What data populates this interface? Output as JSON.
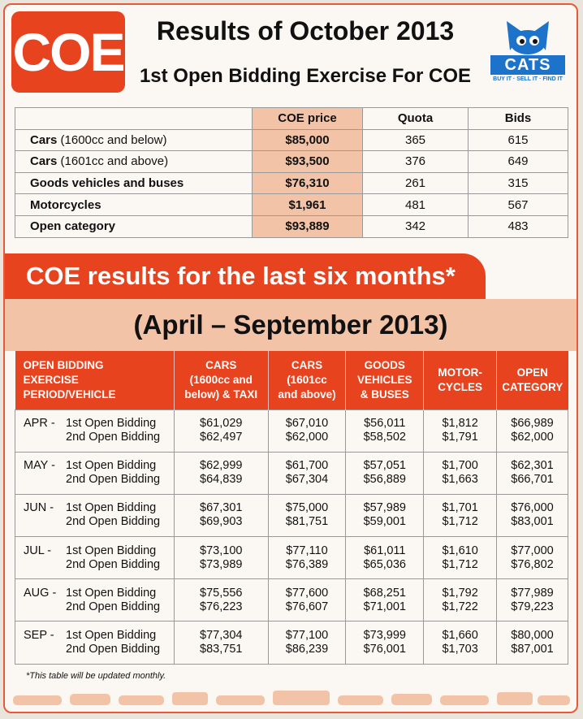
{
  "header": {
    "badge": "COE",
    "title": "Results of October 2013",
    "subtitle": "1st Open Bidding Exercise For COE",
    "logo_text": "CATS",
    "logo_tagline": "BUY IT · SELL IT · FIND IT"
  },
  "current": {
    "columns": [
      "COE price",
      "Quota",
      "Bids"
    ],
    "rows": [
      {
        "bold": "Cars",
        "rest": " (1600cc and below)",
        "price": "$85,000",
        "quota": "365",
        "bids": "615"
      },
      {
        "bold": "Cars",
        "rest": " (1601cc and above)",
        "price": "$93,500",
        "quota": "376",
        "bids": "649"
      },
      {
        "bold": "Goods vehicles and buses",
        "rest": "",
        "price": "$76,310",
        "quota": "261",
        "bids": "315"
      },
      {
        "bold": "Motorcycles",
        "rest": "",
        "price": "$1,961",
        "quota": "481",
        "bids": "567"
      },
      {
        "bold": "Open category",
        "rest": "",
        "price": "$93,889",
        "quota": "342",
        "bids": "483"
      }
    ]
  },
  "banner": "COE results for the last six months*",
  "subbanner": "(April – September 2013)",
  "history": {
    "headers": [
      [
        "OPEN BIDDING",
        "EXERCISE",
        "PERIOD/VEHICLE"
      ],
      [
        "CARS",
        "(1600cc and",
        "below) & TAXI"
      ],
      [
        "CARS",
        "(1601cc",
        "and above)"
      ],
      [
        "GOODS",
        "VEHICLES",
        "& BUSES"
      ],
      [
        "MOTOR-",
        "CYCLES"
      ],
      [
        "OPEN",
        "CATEGORY"
      ]
    ],
    "rows": [
      {
        "month": "APR -",
        "b1": "1st Open Bidding",
        "b2": "2nd Open Bidding",
        "c1": [
          "$61,029",
          "$62,497"
        ],
        "c2": [
          "$67,010",
          "$62,000"
        ],
        "c3": [
          "$56,011",
          "$58,502"
        ],
        "c4": [
          "$1,812",
          "$1,791"
        ],
        "c5": [
          "$66,989",
          "$62,000"
        ]
      },
      {
        "month": "MAY -",
        "b1": "1st Open Bidding",
        "b2": "2nd Open Bidding",
        "c1": [
          "$62,999",
          "$64,839"
        ],
        "c2": [
          "$61,700",
          "$67,304"
        ],
        "c3": [
          "$57,051",
          "$56,889"
        ],
        "c4": [
          "$1,700",
          "$1,663"
        ],
        "c5": [
          "$62,301",
          "$66,701"
        ]
      },
      {
        "month": "JUN -",
        "b1": "1st Open Bidding",
        "b2": "2nd Open Bidding",
        "c1": [
          "$67,301",
          "$69,903"
        ],
        "c2": [
          "$75,000",
          "$81,751"
        ],
        "c3": [
          "$57,989",
          "$59,001"
        ],
        "c4": [
          "$1,701",
          "$1,712"
        ],
        "c5": [
          "$76,000",
          "$83,001"
        ]
      },
      {
        "month": "JUL -",
        "b1": "1st Open Bidding",
        "b2": "2nd Open Bidding",
        "c1": [
          "$73,100",
          "$73,989"
        ],
        "c2": [
          "$77,110",
          "$76,389"
        ],
        "c3": [
          "$61,011",
          "$65,036"
        ],
        "c4": [
          "$1,610",
          "$1,712"
        ],
        "c5": [
          "$77,000",
          "$76,802"
        ]
      },
      {
        "month": "AUG -",
        "b1": "1st Open Bidding",
        "b2": "2nd Open Bidding",
        "c1": [
          "$75,556",
          "$76,223"
        ],
        "c2": [
          "$77,600",
          "$76,607"
        ],
        "c3": [
          "$68,251",
          "$71,001"
        ],
        "c4": [
          "$1,792",
          "$1,722"
        ],
        "c5": [
          "$77,989",
          "$79,223"
        ]
      },
      {
        "month": "SEP -",
        "b1": "1st Open Bidding",
        "b2": "2nd Open Bidding",
        "c1": [
          "$77,304",
          "$83,751"
        ],
        "c2": [
          "$77,100",
          "$86,239"
        ],
        "c3": [
          "$73,999",
          "$76,001"
        ],
        "c4": [
          "$1,660",
          "$1,703"
        ],
        "c5": [
          "$80,000",
          "$87,001"
        ]
      }
    ]
  },
  "footnote": "*This table will be updated monthly.",
  "colors": {
    "accent": "#e8431f",
    "highlight": "#f2c3a6",
    "logo_blue": "#1d72c9"
  }
}
